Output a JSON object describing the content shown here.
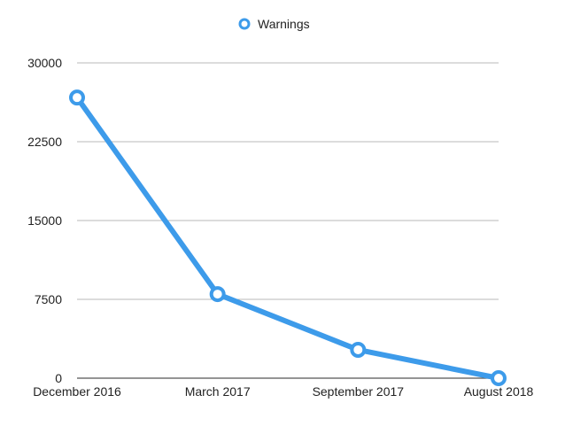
{
  "chart_data": {
    "type": "line",
    "categories": [
      "December 2016",
      "March 2017",
      "September 2017",
      "August 2018"
    ],
    "series": [
      {
        "name": "Warnings",
        "values": [
          26700,
          8000,
          2700,
          0
        ],
        "color": "#3d9bea"
      }
    ],
    "title": "",
    "xlabel": "",
    "ylabel": "",
    "ylim": [
      0,
      30000
    ],
    "yticks": [
      "0",
      "7500",
      "15000",
      "22500",
      "30000"
    ],
    "ytick_values": [
      0,
      7500,
      15000,
      22500,
      30000
    ],
    "grid": true,
    "legend": "top-center"
  }
}
